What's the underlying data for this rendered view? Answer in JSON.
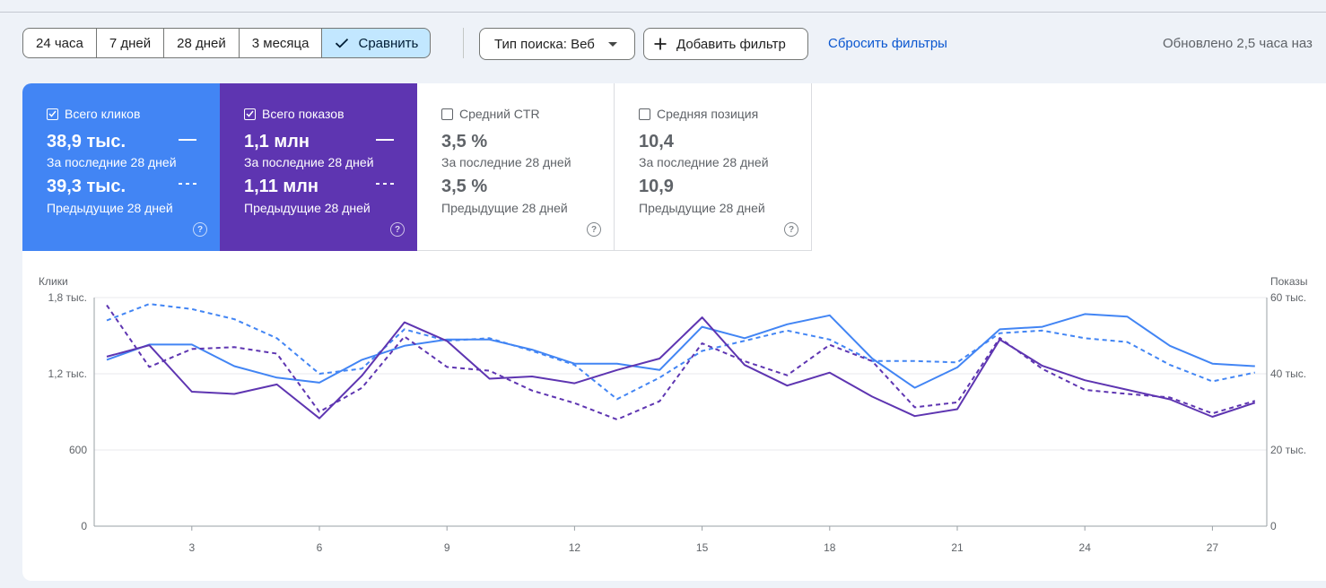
{
  "toolbar": {
    "ranges": [
      "24 часа",
      "7 дней",
      "28 дней",
      "3 месяца"
    ],
    "compare_label": "Сравнить",
    "search_type_label": "Тип поиска: Веб",
    "add_filter_label": "Добавить фильтр",
    "reset_filters_label": "Сбросить фильтры",
    "updated_text": "Обновлено 2,5 часа наз"
  },
  "metrics": [
    {
      "label": "Всего кликов",
      "checked": true,
      "current_value": "38,9 тыс.",
      "current_period": "За последние 28 дней",
      "previous_value": "39,3 тыс.",
      "previous_period": "Предыдущие 28 дней",
      "color": "#4285f4"
    },
    {
      "label": "Всего показов",
      "checked": true,
      "current_value": "1,1 млн",
      "current_period": "За последние 28 дней",
      "previous_value": "1,11 млн",
      "previous_period": "Предыдущие 28 дней",
      "color": "#5e35b1"
    },
    {
      "label": "Средний CTR",
      "checked": false,
      "current_value": "3,5 %",
      "current_period": "За последние 28 дней",
      "previous_value": "3,5 %",
      "previous_period": "Предыдущие 28 дней"
    },
    {
      "label": "Средняя позиция",
      "checked": false,
      "current_value": "10,4",
      "current_period": "За последние 28 дней",
      "previous_value": "10,9",
      "previous_period": "Предыдущие 28 дней"
    }
  ],
  "chart_data": {
    "type": "line",
    "left_axis_label": "Клики",
    "right_axis_label": "Показы",
    "left_ticks": [
      "0",
      "600",
      "1,2 тыс.",
      "1,8 тыс."
    ],
    "right_ticks": [
      "0",
      "20 тыс.",
      "40 тыс.",
      "60 тыс."
    ],
    "left_ylim": [
      0,
      1800
    ],
    "right_ylim": [
      0,
      60000
    ],
    "x_tick_labels": [
      "3",
      "6",
      "9",
      "12",
      "15",
      "18",
      "21",
      "24",
      "27"
    ],
    "x": [
      1,
      2,
      3,
      4,
      5,
      6,
      7,
      8,
      9,
      10,
      11,
      12,
      13,
      14,
      15,
      16,
      17,
      18,
      19,
      20,
      21,
      22,
      23,
      24,
      25,
      26,
      27,
      28
    ],
    "series": [
      {
        "axis": "left",
        "style": "solid",
        "color": "#4285f4",
        "values": [
          1310,
          1430,
          1430,
          1260,
          1170,
          1130,
          1310,
          1420,
          1470,
          1470,
          1390,
          1280,
          1280,
          1230,
          1570,
          1480,
          1590,
          1660,
          1320,
          1090,
          1250,
          1550,
          1570,
          1670,
          1650,
          1420,
          1280,
          1260
        ]
      },
      {
        "axis": "left",
        "style": "dashed",
        "color": "#4285f4",
        "values": [
          1620,
          1750,
          1710,
          1630,
          1480,
          1200,
          1240,
          1550,
          1460,
          1480,
          1380,
          1270,
          1000,
          1170,
          1380,
          1460,
          1540,
          1470,
          1300,
          1300,
          1290,
          1520,
          1540,
          1480,
          1450,
          1270,
          1140,
          1210
        ]
      },
      {
        "axis": "right",
        "style": "solid",
        "color": "#5e35b1",
        "values": [
          44500,
          47500,
          35300,
          34700,
          37200,
          28300,
          39500,
          53500,
          48600,
          38700,
          39300,
          37500,
          41000,
          44000,
          54800,
          42300,
          36900,
          40300,
          34000,
          28900,
          30700,
          49000,
          42100,
          38300,
          35800,
          33300,
          28700,
          32400
        ]
      },
      {
        "axis": "right",
        "style": "dashed",
        "color": "#5e35b1",
        "values": [
          58000,
          41800,
          46500,
          47000,
          45300,
          30000,
          36300,
          49800,
          41800,
          40800,
          35600,
          32300,
          28000,
          32800,
          48000,
          43300,
          39600,
          47600,
          43300,
          31200,
          32500,
          49400,
          41300,
          35800,
          34700,
          33800,
          29600,
          32900
        ]
      }
    ]
  }
}
